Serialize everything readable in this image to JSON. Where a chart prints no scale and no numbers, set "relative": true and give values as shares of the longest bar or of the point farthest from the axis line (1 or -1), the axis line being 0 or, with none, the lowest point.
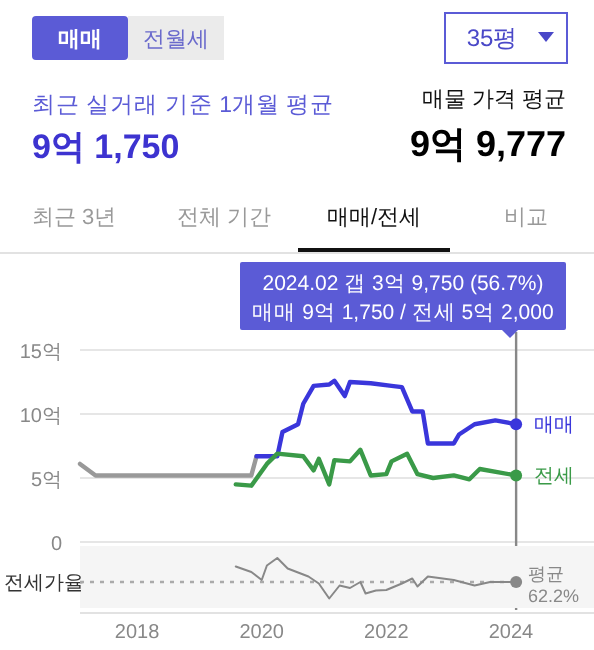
{
  "chart_data": [
    {
      "type": "other",
      "annotations": [
        "매매",
        "전월세",
        "35평",
        "최근 실거래 기준 1개월 평균",
        "9억 1,750",
        "매물 가격 평균",
        "9억 9,777",
        "최근 3년",
        "전체 기간",
        "매매/전세",
        "비교"
      ]
    },
    {
      "type": "line",
      "xlim": [
        "2017-02",
        "2025-05"
      ],
      "ylim": [
        0,
        15
      ],
      "yticks": [
        {
          "value": 0,
          "label": "0"
        },
        {
          "value": 5,
          "label": "5억"
        },
        {
          "value": 10,
          "label": "10억"
        },
        {
          "value": 15,
          "label": "15억"
        }
      ],
      "xticks": [
        "2018",
        "2020",
        "2022",
        "2024"
      ],
      "tick_labels": "y",
      "grid": "y",
      "legend": "right",
      "line_style": "solid",
      "annotations": [
        "2024.02  갭 3억 9,750 (56.7%)",
        "매매 9억 1,750 / 전세 5억 2,000"
      ],
      "ref_lines": [
        {
          "axis": "x",
          "value": "2024-02",
          "color": "#888888"
        }
      ],
      "series": [
        {
          "color": "#999999",
          "x": [
            "2017-02",
            "2017-05",
            "2019-11",
            "2019-12"
          ],
          "values": [
            6.1,
            5.2,
            5.2,
            6.7
          ]
        },
        {
          "name": "매매",
          "color": "#3a36db",
          "x": [
            "2019-12",
            "2020-04",
            "2020-05",
            "2020-08",
            "2020-09",
            "2020-11",
            "2021-02",
            "2021-03",
            "2021-05",
            "2021-06",
            "2021-10",
            "2022-02",
            "2022-04",
            "2022-06",
            "2022-08",
            "2022-09",
            "2023-02",
            "2023-03",
            "2023-06",
            "2023-10",
            "2024-02"
          ],
          "values": [
            6.7,
            6.7,
            8.6,
            9.2,
            10.8,
            12.2,
            12.3,
            12.6,
            11.4,
            12.5,
            12.4,
            12.2,
            12.1,
            10.2,
            10.2,
            7.7,
            7.7,
            8.4,
            9.2,
            9.5,
            9.2
          ]
        },
        {
          "name": "전세",
          "color": "#3a9a48",
          "x": [
            "2019-08",
            "2019-11",
            "2020-02",
            "2020-04",
            "2020-09",
            "2020-11",
            "2020-12",
            "2021-02",
            "2021-03",
            "2021-06",
            "2021-08",
            "2021-10",
            "2022-01",
            "2022-02",
            "2022-05",
            "2022-07",
            "2022-10",
            "2023-02",
            "2023-05",
            "2023-07",
            "2024-02"
          ],
          "values": [
            4.5,
            4.4,
            6.1,
            6.9,
            6.7,
            5.6,
            6.5,
            4.5,
            6.4,
            6.3,
            7.2,
            5.2,
            5.3,
            6.3,
            6.9,
            5.3,
            5.0,
            5.2,
            4.9,
            5.7,
            5.2
          ]
        }
      ]
    },
    {
      "type": "line",
      "relative": true,
      "ylabel": "전세가율",
      "xlim": [
        "2017-02",
        "2025-05"
      ],
      "xticks": [
        "2018",
        "2020",
        "2022",
        "2024"
      ],
      "tick_labels": "x",
      "ref_lines": [
        {
          "axis": "y",
          "value": 0.52,
          "label": "평균 62.2%",
          "line_style": "dotted",
          "color": "#aaaaaa"
        }
      ],
      "series": [
        {
          "color": "#888888",
          "x": [
            "2019-08",
            "2019-11",
            "2020-01",
            "2020-02",
            "2020-04",
            "2020-06",
            "2020-10",
            "2020-12",
            "2021-02",
            "2021-04",
            "2021-06",
            "2021-08",
            "2021-09",
            "2021-11",
            "2022-01",
            "2022-04",
            "2022-06",
            "2022-07",
            "2022-09",
            "2023-02",
            "2023-06",
            "2023-09",
            "2024-02"
          ],
          "values": [
            0.83,
            0.72,
            0.56,
            0.85,
            1,
            0.79,
            0.63,
            0.49,
            0.19,
            0.45,
            0.4,
            0.52,
            0.29,
            0.35,
            0.36,
            0.49,
            0.59,
            0.43,
            0.63,
            0.56,
            0.45,
            0.52,
            0.52
          ]
        }
      ]
    }
  ]
}
